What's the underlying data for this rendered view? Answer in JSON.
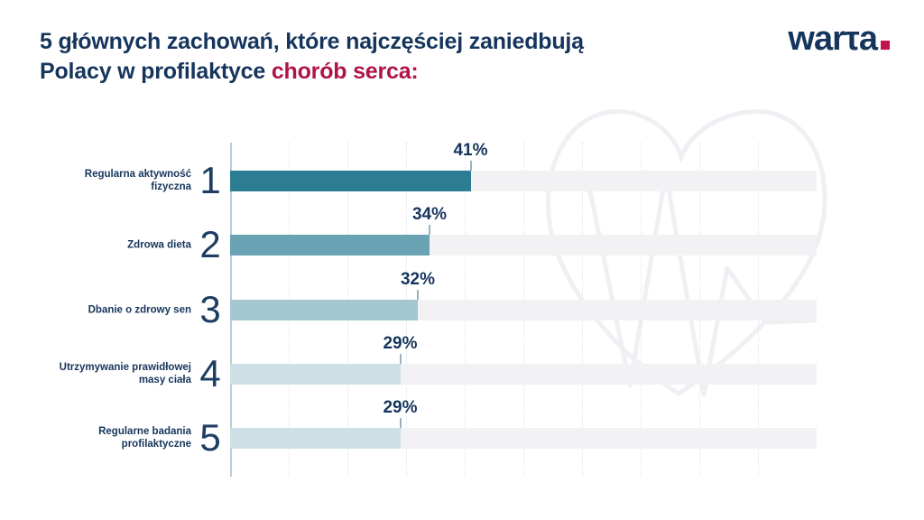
{
  "title": {
    "line1": "5 głównych zachowań, które najczęściej zaniedbują",
    "line2_normal": "Polacy w profilaktyce ",
    "line2_accent": "chorób serca:"
  },
  "logo": {
    "part1": "war",
    "part2": "τ",
    "part3": "a"
  },
  "colors": {
    "navy": "#16355c",
    "accent_red": "#b01349",
    "logo_dot": "#c11350",
    "track": "#f2f2f5",
    "axis": "#b9ccda",
    "gridline": "#e2e5ec",
    "tick": "#9db2bd",
    "watermark": "#f0f0f4"
  },
  "chart_data": {
    "type": "bar",
    "orientation": "horizontal",
    "title": "5 głównych zachowań, które najczęściej zaniedbują Polacy w profilaktyce chorób serca:",
    "categories": [
      "Regularna aktywność fizyczna",
      "Zdrowa dieta",
      "Dbanie o zdrowy sen",
      "Utrzymywanie prawidłowej masy ciała",
      "Regularne badania profilaktyczne"
    ],
    "ranks": [
      "1",
      "2",
      "3",
      "4",
      "5"
    ],
    "values": [
      41,
      34,
      32,
      29,
      29
    ],
    "value_labels": [
      "41%",
      "34%",
      "32%",
      "29%",
      "29%"
    ],
    "xlim": [
      0,
      100
    ],
    "gridlines_every": 10,
    "grid": true,
    "legend": false,
    "bar_colors": [
      "#2d7d92",
      "#6aa3b3",
      "#a4c7d2",
      "#cde0e6",
      "#cde0e6"
    ]
  }
}
